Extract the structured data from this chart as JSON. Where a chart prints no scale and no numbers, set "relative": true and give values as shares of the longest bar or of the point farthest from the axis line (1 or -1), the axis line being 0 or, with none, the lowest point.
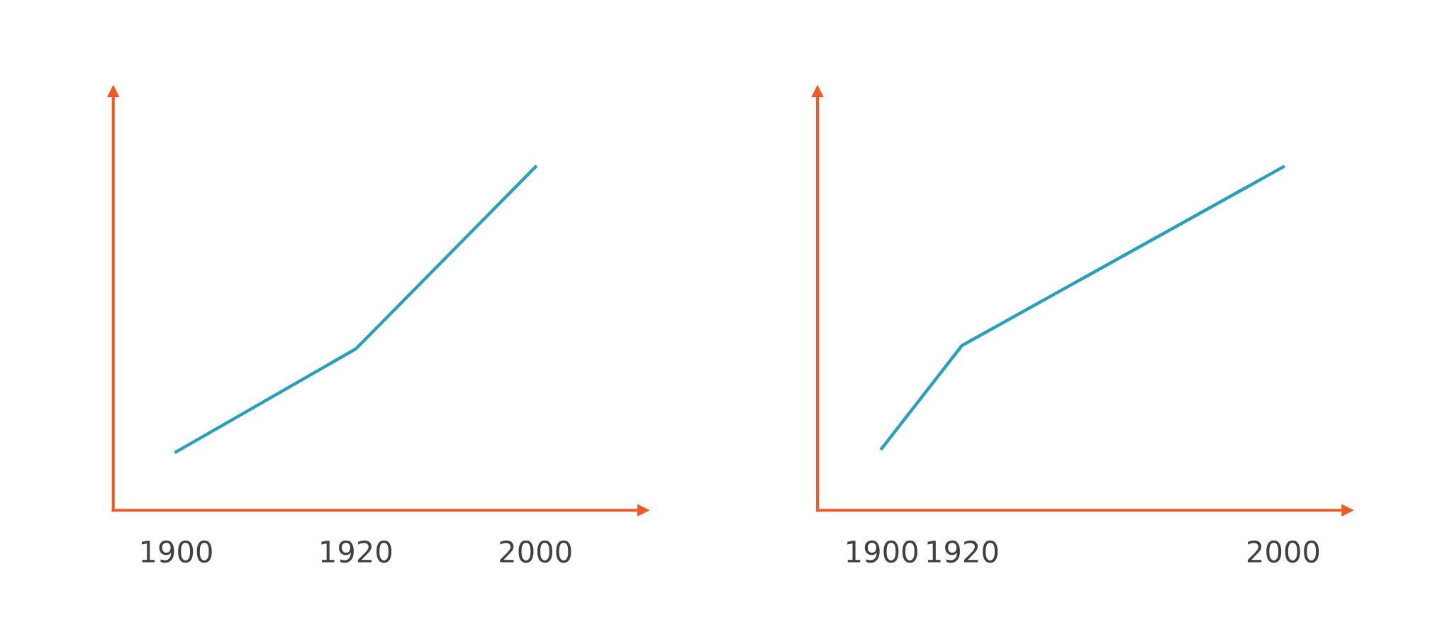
{
  "chart_data": [
    {
      "type": "line",
      "relative": true,
      "categories": [
        "1900",
        "1920",
        "2000"
      ],
      "series": [
        {
          "color": "#2a9fbc",
          "values": [
            0.17,
            0.47,
            1
          ]
        }
      ],
      "grid": false,
      "legend": false,
      "tick_labels": "x"
    },
    {
      "type": "line",
      "relative": true,
      "x": [
        1900,
        1920,
        2000
      ],
      "xlim": [
        1884,
        2016
      ],
      "xticks": [
        1900,
        1920,
        2000
      ],
      "series": [
        {
          "color": "#2a9fbc",
          "values": [
            0.18,
            0.48,
            1
          ]
        }
      ],
      "grid": false,
      "legend": false,
      "tick_labels": "x"
    }
  ]
}
